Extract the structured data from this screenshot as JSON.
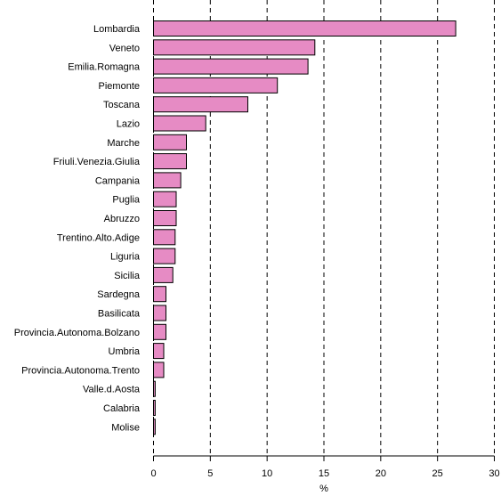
{
  "chart_data": {
    "type": "bar",
    "orientation": "horizontal",
    "categories": [
      "Lombardia",
      "Veneto",
      "Emilia.Romagna",
      "Piemonte",
      "Toscana",
      "Lazio",
      "Marche",
      "Friuli.Venezia.Giulia",
      "Campania",
      "Puglia",
      "Abruzzo",
      "Trentino.Alto.Adige",
      "Liguria",
      "Sicilia",
      "Sardegna",
      "Basilicata",
      "Provincia.Autonoma.Bolzano",
      "Umbria",
      "Provincia.Autonoma.Trento",
      "Valle.d.Aosta",
      "Calabria",
      "Molise"
    ],
    "values": [
      26.6,
      14.2,
      13.6,
      10.9,
      8.3,
      4.6,
      2.9,
      2.9,
      2.4,
      2.0,
      2.0,
      1.9,
      1.9,
      1.7,
      1.1,
      1.1,
      1.1,
      0.9,
      0.9,
      0.15,
      0.15,
      0.15
    ],
    "xlabel": "%",
    "ylabel": "",
    "xlim": [
      0,
      30
    ],
    "xticks": [
      "0",
      "5",
      "10",
      "15",
      "20",
      "25",
      "30"
    ],
    "grid": "vertical dashed",
    "bar_color": "#e68bc4"
  }
}
